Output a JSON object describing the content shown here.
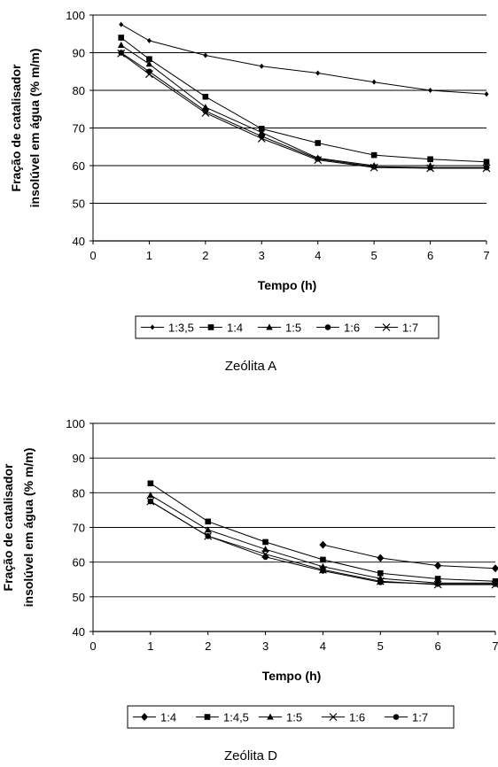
{
  "chart_data": [
    {
      "type": "line",
      "title": "",
      "caption": "Zeólita A",
      "xlabel": "Tempo (h)",
      "ylabel": [
        "Fração de catalisador",
        "insolúvel em água (% m/m)"
      ],
      "xlim": [
        0,
        7
      ],
      "ylim": [
        40,
        100
      ],
      "xticks": [
        0,
        1,
        2,
        3,
        4,
        5,
        6,
        7
      ],
      "yticks": [
        40,
        50,
        60,
        70,
        80,
        90,
        100
      ],
      "grid": "horizontal",
      "legend": "bottom",
      "series": [
        {
          "name": "1:3,5",
          "marker": "small-diamond",
          "points": [
            [
              0.5,
              97.5
            ],
            [
              1,
              93.2
            ],
            [
              2,
              89.3
            ],
            [
              3,
              86.4
            ],
            [
              4,
              84.6
            ],
            [
              5,
              82.2
            ],
            [
              6,
              80.0
            ],
            [
              7,
              79.0
            ]
          ]
        },
        {
          "name": "1:4",
          "marker": "square",
          "points": [
            [
              0.5,
              94.0
            ],
            [
              1,
              88.3
            ],
            [
              2,
              78.3
            ],
            [
              3,
              69.8
            ],
            [
              4,
              66.0
            ],
            [
              5,
              62.8
            ],
            [
              6,
              61.7
            ],
            [
              7,
              61.0
            ]
          ]
        },
        {
          "name": "1:5",
          "marker": "triangle",
          "points": [
            [
              0.5,
              92.0
            ],
            [
              1,
              87.0
            ],
            [
              2,
              75.5
            ],
            [
              3,
              68.8
            ],
            [
              4,
              62.0
            ],
            [
              5,
              60.0
            ],
            [
              6,
              60.0
            ],
            [
              7,
              60.0
            ]
          ]
        },
        {
          "name": "1:6",
          "marker": "circle",
          "points": [
            [
              0.5,
              90.0
            ],
            [
              1,
              85.0
            ],
            [
              2,
              74.5
            ],
            [
              3,
              67.8
            ],
            [
              4,
              61.8
            ],
            [
              5,
              59.7
            ],
            [
              6,
              59.5
            ],
            [
              7,
              59.5
            ]
          ]
        },
        {
          "name": "1:7",
          "marker": "x",
          "points": [
            [
              0.5,
              89.8
            ],
            [
              1,
              84.3
            ],
            [
              2,
              74.0
            ],
            [
              3,
              67.2
            ],
            [
              4,
              61.5
            ],
            [
              5,
              59.5
            ],
            [
              6,
              59.3
            ],
            [
              7,
              59.3
            ]
          ]
        }
      ]
    },
    {
      "type": "line",
      "title": "",
      "caption": "Zeólita D",
      "xlabel": "Tempo (h)",
      "ylabel": [
        "Fração de catalisador",
        "insolúvel em água (% m/m)"
      ],
      "xlim": [
        0,
        7
      ],
      "ylim": [
        40,
        100
      ],
      "xticks": [
        0,
        1,
        2,
        3,
        4,
        5,
        6,
        7
      ],
      "yticks": [
        40,
        50,
        60,
        70,
        80,
        90,
        100
      ],
      "grid": "horizontal",
      "legend": "bottom",
      "series": [
        {
          "name": "1:4",
          "marker": "diamond",
          "points": [
            [
              4,
              65.0
            ],
            [
              5,
              61.2
            ],
            [
              6,
              59.0
            ],
            [
              7,
              58.2
            ]
          ]
        },
        {
          "name": "1:4,5",
          "marker": "square",
          "points": [
            [
              1,
              82.7
            ],
            [
              2,
              71.7
            ],
            [
              3,
              65.8
            ],
            [
              4,
              60.7
            ],
            [
              5,
              56.8
            ],
            [
              6,
              55.2
            ],
            [
              7,
              54.5
            ]
          ]
        },
        {
          "name": "1:5",
          "marker": "triangle",
          "points": [
            [
              1,
              79.3
            ],
            [
              2,
              69.3
            ],
            [
              3,
              63.7
            ],
            [
              4,
              58.7
            ],
            [
              5,
              55.3
            ],
            [
              6,
              54.0
            ],
            [
              7,
              54.0
            ]
          ]
        },
        {
          "name": "1:6",
          "marker": "x",
          "points": [
            [
              1,
              77.5
            ],
            [
              2,
              67.5
            ],
            [
              3,
              62.3
            ],
            [
              4,
              57.8
            ],
            [
              5,
              54.5
            ],
            [
              6,
              53.5
            ],
            [
              7,
              53.5
            ]
          ]
        },
        {
          "name": "1:7",
          "marker": "circle",
          "points": [
            [
              1,
              77.5
            ],
            [
              2,
              67.5
            ],
            [
              3,
              61.5
            ],
            [
              4,
              57.5
            ],
            [
              5,
              54.2
            ],
            [
              6,
              53.7
            ],
            [
              7,
              53.7
            ]
          ]
        }
      ]
    }
  ]
}
